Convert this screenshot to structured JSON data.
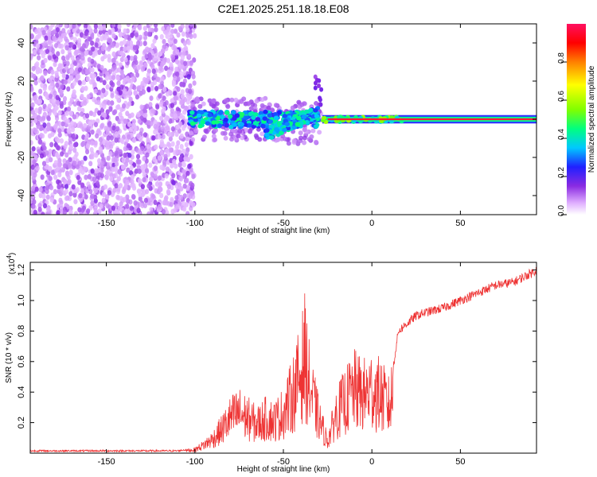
{
  "title": "C2E1.2025.251.18.18.E08",
  "chart_data": [
    {
      "type": "heatmap",
      "name": "spectrogram",
      "xlabel": "Height of straight line (km)",
      "ylabel": "Frequency (Hz)",
      "xlim": [
        -193,
        93
      ],
      "ylim": [
        -50,
        50
      ],
      "x_ticks": [
        -150,
        -100,
        -50,
        0,
        50
      ],
      "y_ticks": [
        -40,
        -20,
        0,
        20,
        40
      ],
      "regions": [
        {
          "name": "noise",
          "x_range": [
            -193,
            -100
          ],
          "f_range": [
            -50,
            50
          ],
          "amplitude_range": [
            0.05,
            0.3
          ]
        },
        {
          "name": "broadband-onset",
          "x_range": [
            -103,
            -30
          ],
          "f_center": 0,
          "f_halfwidth": 4,
          "amplitude_range": [
            0.3,
            0.45
          ]
        },
        {
          "name": "descending-band",
          "x_range": [
            -60,
            -30
          ],
          "f_center_range": [
            -8,
            4
          ],
          "amplitude_range": [
            0.3,
            0.45
          ]
        },
        {
          "name": "tone",
          "x_range": [
            -28,
            93
          ],
          "f_center": 0,
          "amplitude_range": [
            0.8,
            1.0
          ]
        }
      ],
      "colorbar": {
        "label": "Normalized spectral amplitude",
        "range": [
          0,
          1
        ],
        "ticks": [
          0.0,
          0.2,
          0.4,
          0.6,
          0.8
        ],
        "tick_labels": [
          "0.0",
          "0.2",
          "0.4",
          "0.6",
          "0.8"
        ]
      }
    },
    {
      "type": "line",
      "name": "snr",
      "xlabel": "Height of straight line (km)",
      "ylabel": "SNR (10 * v/v)",
      "exponent": "(x10",
      "exponent_power": "4",
      "exponent_close": ")",
      "xlim": [
        -193,
        93
      ],
      "ylim": [
        0,
        1.25
      ],
      "x_ticks": [
        -150,
        -100,
        -50,
        0,
        50
      ],
      "y_ticks": [
        0.2,
        0.4,
        0.6,
        0.8,
        1.0,
        1.2
      ],
      "y_tick_labels": [
        "0.2",
        "0.4",
        "0.6",
        "0.8",
        "1.0",
        "1.2"
      ],
      "color": "#ee3333",
      "series": [
        {
          "name": "SNR",
          "x": [
            -193,
            -150,
            -110,
            -100,
            -95,
            -90,
            -85,
            -80,
            -75,
            -70,
            -65,
            -60,
            -55,
            -50,
            -45,
            -40,
            -38,
            -35,
            -30,
            -25,
            -20,
            -15,
            -10,
            -5,
            0,
            5,
            10,
            15,
            20,
            25,
            30,
            40,
            50,
            60,
            70,
            80,
            90,
            93
          ],
          "y": [
            0.015,
            0.015,
            0.015,
            0.03,
            0.07,
            0.12,
            0.2,
            0.3,
            0.35,
            0.3,
            0.25,
            0.3,
            0.28,
            0.35,
            0.5,
            0.7,
            0.85,
            0.55,
            0.3,
            0.1,
            0.35,
            0.45,
            0.55,
            0.5,
            0.55,
            0.5,
            0.4,
            0.8,
            0.85,
            0.9,
            0.92,
            0.95,
            1.0,
            1.05,
            1.1,
            1.12,
            1.18,
            1.2
          ]
        }
      ]
    }
  ]
}
